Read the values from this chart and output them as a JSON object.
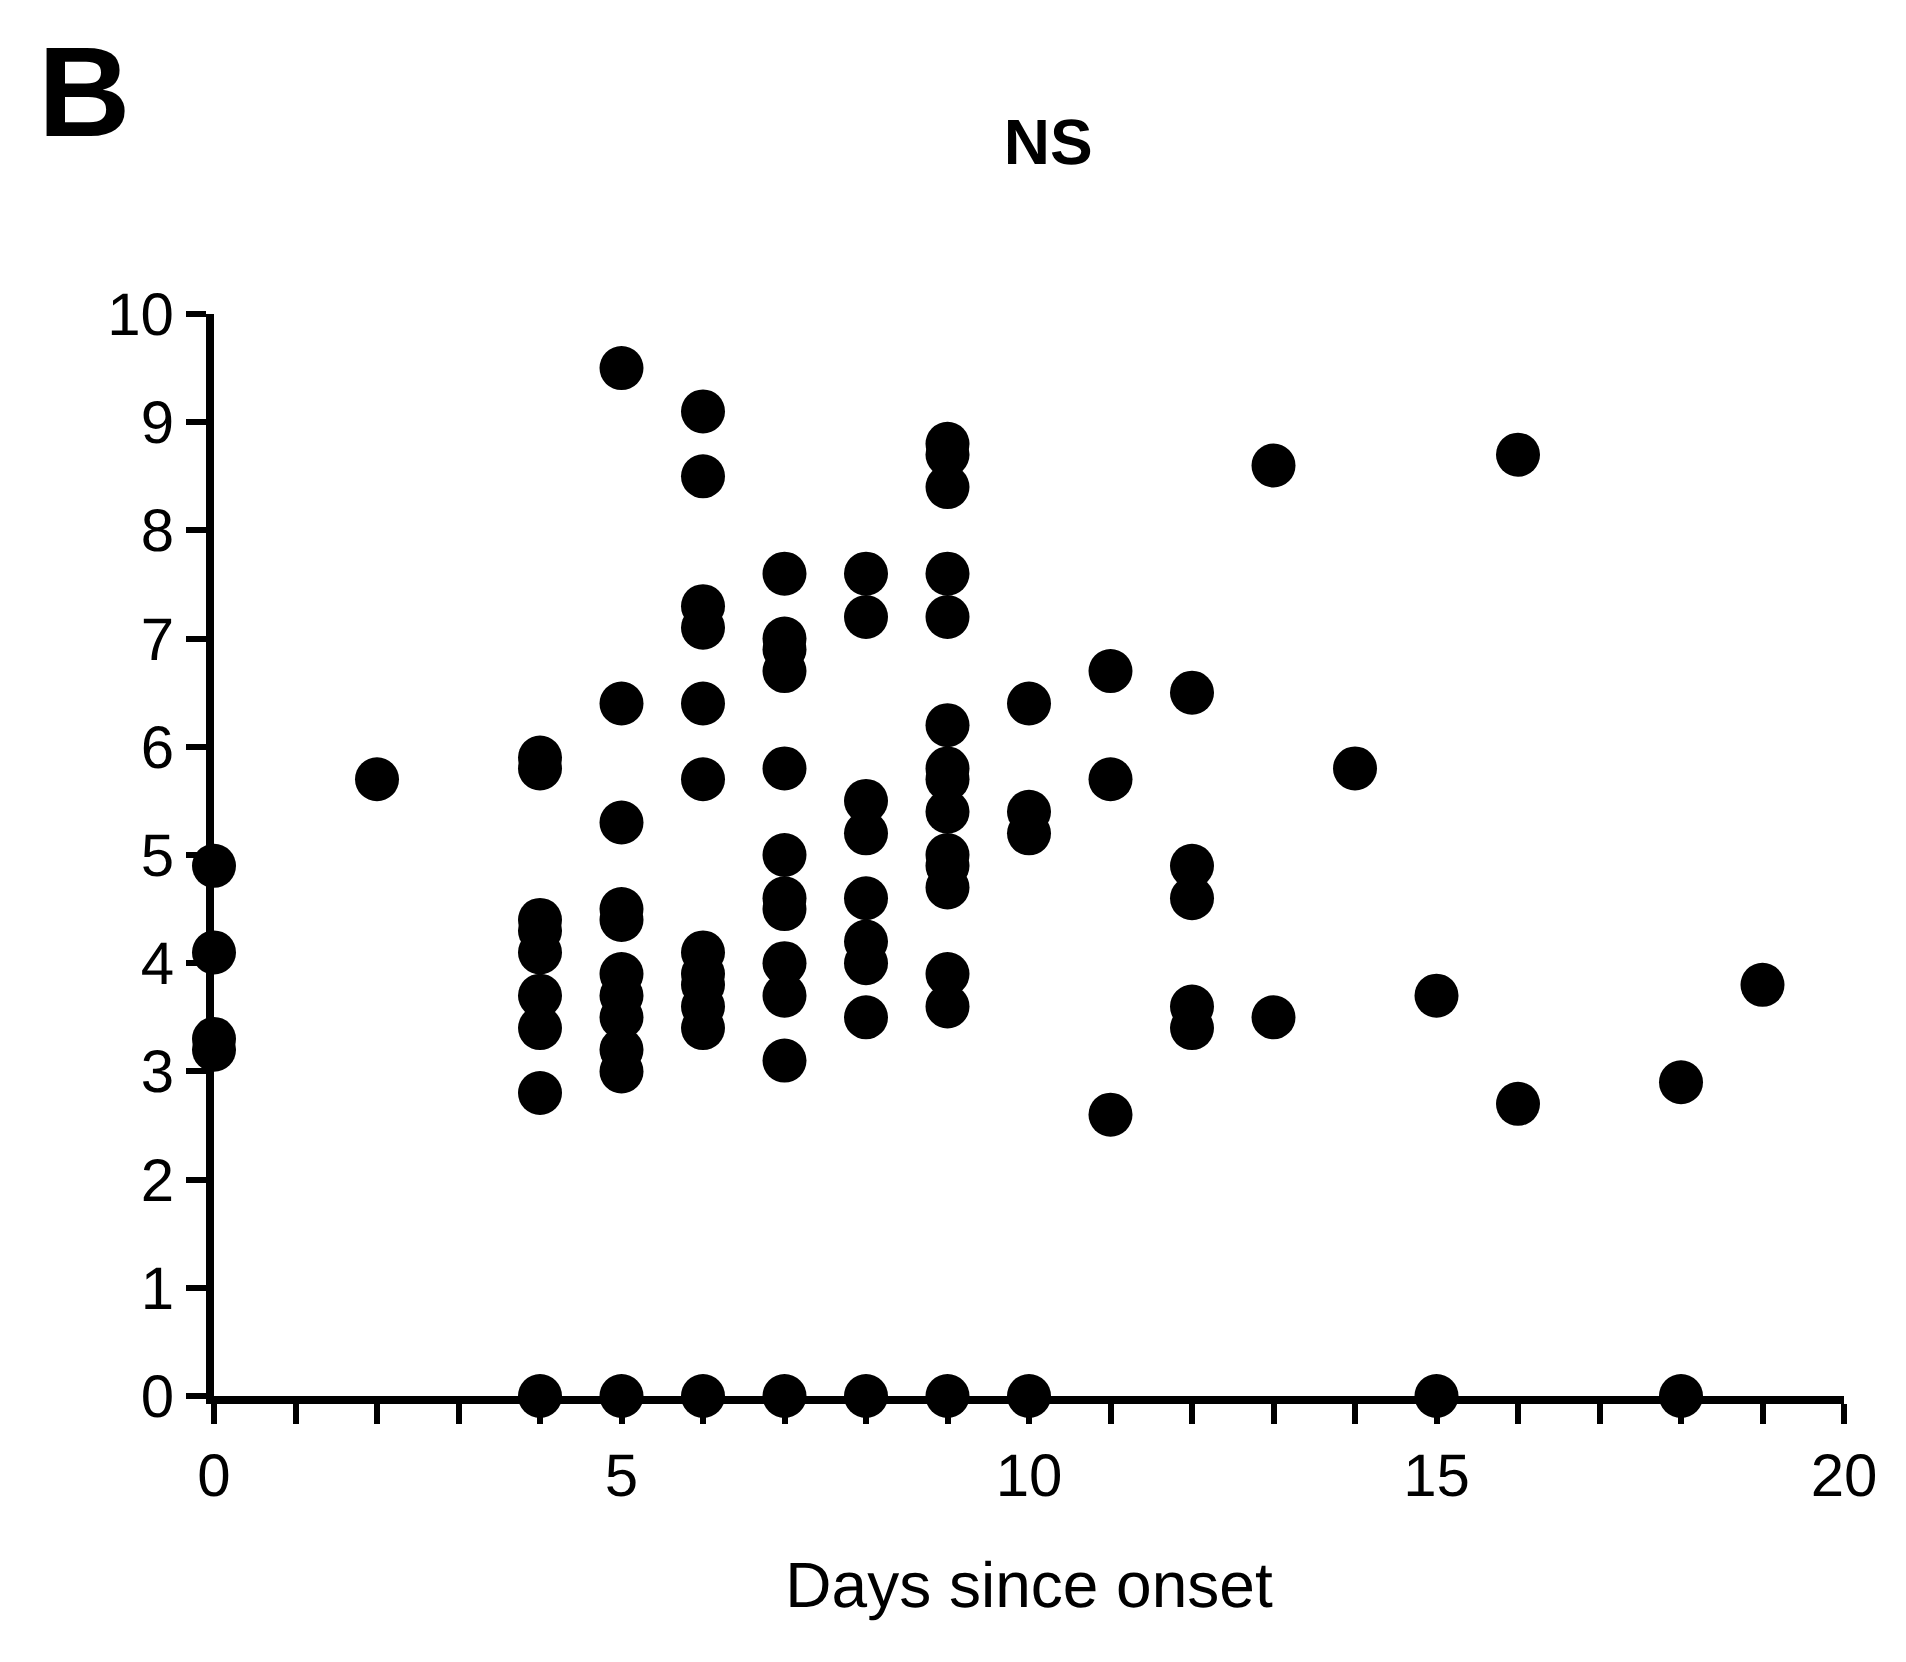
{
  "chart_data": {
    "type": "scatter",
    "title": "NS",
    "xlabel": "Days since onset",
    "annotations": [
      "B"
    ],
    "series": [
      {
        "color": "#000000",
        "x": [
          0,
          0,
          0,
          0,
          2,
          4,
          4,
          4,
          4,
          4,
          4,
          4,
          4,
          4,
          5,
          5,
          5,
          5,
          5,
          5,
          5,
          5,
          5,
          5,
          5,
          6,
          6,
          6,
          6,
          6,
          6,
          6,
          6,
          6,
          6,
          6,
          6,
          7,
          7,
          7,
          7,
          7,
          7,
          7,
          7,
          7,
          7,
          7,
          7,
          8,
          8,
          8,
          8,
          8,
          8,
          8,
          8,
          8,
          9,
          9,
          9,
          9,
          9,
          9,
          9,
          9,
          9,
          9,
          9,
          9,
          9,
          9,
          9,
          10,
          10,
          10,
          10,
          11,
          11,
          11,
          12,
          12,
          12,
          12,
          12,
          13,
          13,
          14,
          15,
          15,
          16,
          16,
          18,
          18,
          19
        ],
        "values": [
          4.9,
          4.1,
          3.3,
          3.2,
          5.7,
          5.9,
          5.8,
          4.4,
          4.3,
          4.1,
          3.7,
          3.4,
          2.8,
          0,
          9.5,
          6.4,
          5.3,
          4.5,
          4.4,
          3.9,
          3.7,
          3.5,
          3.2,
          3.0,
          0,
          9.1,
          8.5,
          7.3,
          7.1,
          6.4,
          5.7,
          4.1,
          3.9,
          3.8,
          3.6,
          3.4,
          0,
          7.6,
          7.0,
          6.9,
          6.7,
          5.8,
          5.0,
          4.6,
          4.5,
          4.0,
          3.7,
          3.1,
          0,
          7.6,
          7.2,
          5.5,
          5.2,
          4.6,
          4.2,
          4.0,
          3.5,
          0,
          8.8,
          8.7,
          8.4,
          7.6,
          7.2,
          6.2,
          5.8,
          5.7,
          5.4,
          5.0,
          4.9,
          4.7,
          3.9,
          3.6,
          0,
          6.4,
          5.4,
          5.2,
          0,
          6.7,
          5.7,
          2.6,
          6.5,
          4.9,
          4.6,
          3.6,
          3.4,
          8.6,
          3.5,
          5.8,
          3.7,
          0,
          8.7,
          2.7,
          2.9,
          0,
          3.8
        ]
      }
    ],
    "marker": "circle",
    "xlim": [
      0,
      20
    ],
    "xticks": [
      0,
      {
        "value": 1,
        "label": null
      },
      {
        "value": 2,
        "label": null
      },
      {
        "value": 3,
        "label": null
      },
      {
        "value": 4,
        "label": null
      },
      5,
      {
        "value": 6,
        "label": null
      },
      {
        "value": 7,
        "label": null
      },
      {
        "value": 8,
        "label": null
      },
      {
        "value": 9,
        "label": null
      },
      10,
      {
        "value": 11,
        "label": null
      },
      {
        "value": 12,
        "label": null
      },
      {
        "value": 13,
        "label": null
      },
      {
        "value": 14,
        "label": null
      },
      15,
      {
        "value": 16,
        "label": null
      },
      {
        "value": 17,
        "label": null
      },
      {
        "value": 18,
        "label": null
      },
      {
        "value": 19,
        "label": null
      },
      20
    ],
    "ylim": [
      0,
      10
    ],
    "yticks": [
      0,
      1,
      2,
      3,
      4,
      5,
      6,
      7,
      8,
      9,
      10
    ]
  }
}
